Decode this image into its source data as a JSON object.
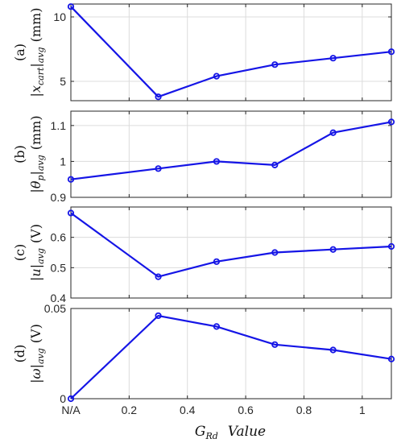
{
  "chart_data": [
    {
      "type": "line",
      "panel": "(a)",
      "ylabel": "(a) |x_cart|_avg (mm)",
      "ylabel_parts": {
        "prefix": "(a)",
        "var": "x",
        "sub": "cart",
        "avg": "avg",
        "unit": "(mm)"
      },
      "x": [
        0,
        0.3,
        0.5,
        0.7,
        0.9,
        1.1
      ],
      "y": [
        10.8,
        3.8,
        5.4,
        6.3,
        6.8,
        7.3
      ],
      "ylim": [
        3.5,
        11
      ],
      "yticks": [
        5,
        10
      ],
      "ytick_labels": [
        "5",
        "10"
      ]
    },
    {
      "type": "line",
      "panel": "(b)",
      "ylabel": "(b) |θ_p|_avg (mm)",
      "ylabel_parts": {
        "prefix": "(b)",
        "var": "θ",
        "sub": "p",
        "avg": "avg",
        "unit": "(mm)"
      },
      "x": [
        0,
        0.3,
        0.5,
        0.7,
        0.9,
        1.1
      ],
      "y": [
        0.95,
        0.98,
        1.0,
        0.99,
        1.08,
        1.11
      ],
      "ylim": [
        0.9,
        1.14
      ],
      "yticks": [
        0.9,
        1.0,
        1.1
      ],
      "ytick_labels": [
        "0.9",
        "1",
        "1.1"
      ]
    },
    {
      "type": "line",
      "panel": "(c)",
      "ylabel": "(c) |u|_avg (V)",
      "ylabel_parts": {
        "prefix": "(c)",
        "var": "u",
        "sub": "",
        "avg": "avg",
        "unit": "(V)"
      },
      "x": [
        0,
        0.3,
        0.5,
        0.7,
        0.9,
        1.1
      ],
      "y": [
        0.68,
        0.47,
        0.52,
        0.55,
        0.56,
        0.57
      ],
      "ylim": [
        0.4,
        0.7
      ],
      "yticks": [
        0.4,
        0.5,
        0.6
      ],
      "ytick_labels": [
        "0.4",
        "0.5",
        "0.6"
      ]
    },
    {
      "type": "line",
      "panel": "(d)",
      "ylabel": "(d) |ω|_avg (V)",
      "ylabel_parts": {
        "prefix": "(d)",
        "var": "ω",
        "sub": "",
        "avg": "avg",
        "unit": "(V)"
      },
      "x": [
        0,
        0.3,
        0.5,
        0.7,
        0.9,
        1.1
      ],
      "y": [
        0,
        0.046,
        0.04,
        0.03,
        0.027,
        0.022
      ],
      "ylim": [
        0,
        0.05
      ],
      "yticks": [
        0,
        0.05
      ],
      "ytick_labels": [
        "0",
        "0.05"
      ]
    }
  ],
  "x_axis": {
    "xlim": [
      0,
      1.1
    ],
    "ticks": [
      0,
      0.2,
      0.4,
      0.6,
      0.8,
      1.0
    ],
    "tick_labels": [
      "N/A",
      "0.2",
      "0.4",
      "0.6",
      "0.8",
      "1"
    ],
    "label": "G_Rd  Value",
    "label_parts": {
      "main": "G",
      "sub": "Rd",
      "rest": "Value"
    }
  },
  "grid": true,
  "colors": {
    "series": "#1515e6",
    "grid": "#dcdcdc",
    "axes": "#262626"
  }
}
